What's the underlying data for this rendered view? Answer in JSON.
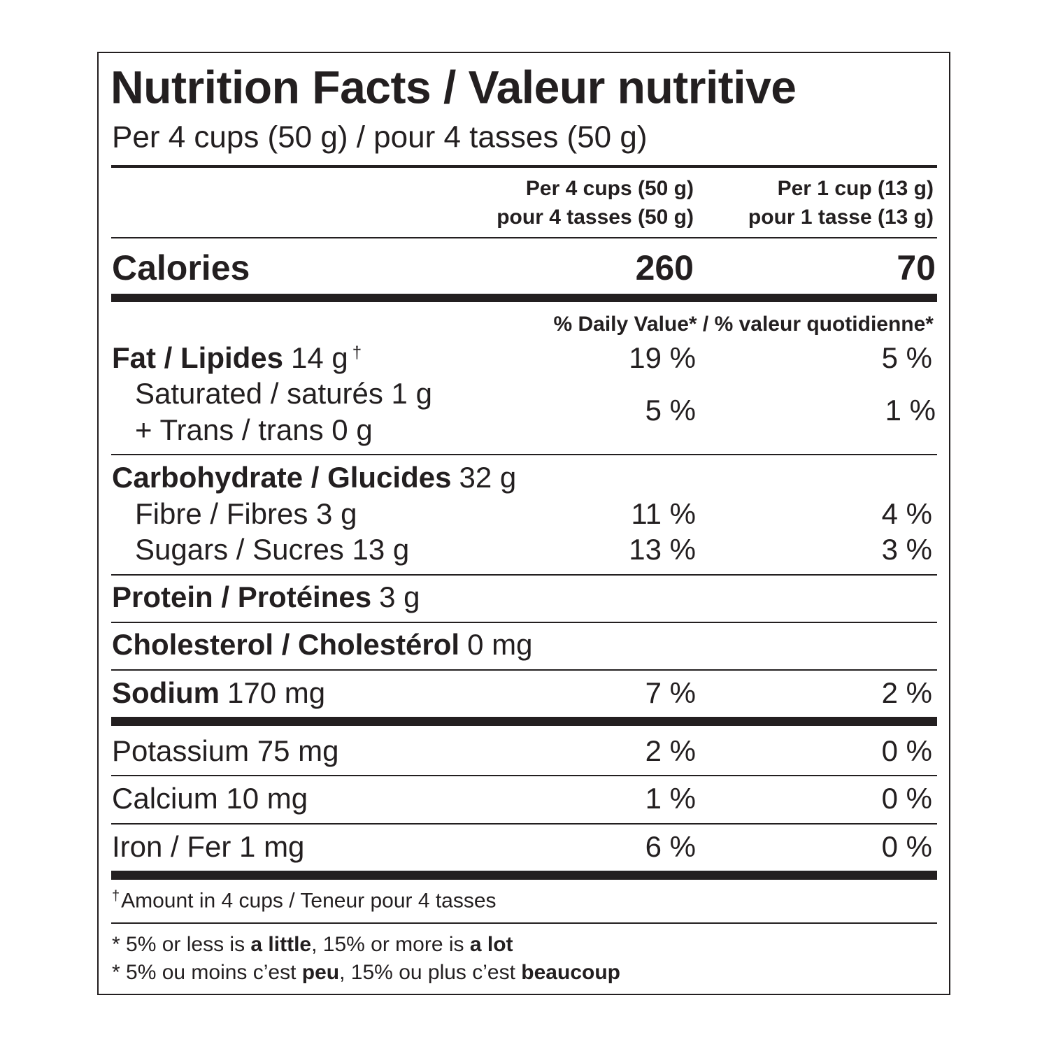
{
  "title": "Nutrition Facts / Valeur nutritive",
  "serving": "Per 4 cups (50 g) / pour 4 tasses (50 g)",
  "columns": [
    [
      "Per 4 cups (50 g)",
      "pour 4 tasses (50 g)"
    ],
    [
      "Per 1 cup (13 g)",
      "pour 1 tasse (13 g)"
    ]
  ],
  "calories": {
    "label": "Calories",
    "values": [
      260,
      70
    ]
  },
  "dv_header": "% Daily Value* / % valeur quotidienne*",
  "nutrients": [
    {
      "name": "Fat / Lipides",
      "amount": "14 g",
      "mark": "†",
      "dv": [
        "19 %",
        "5 %"
      ]
    },
    {
      "lines": [
        "Saturated / saturés 1 g",
        "+ Trans / trans 0 g"
      ],
      "dv": [
        "5 %",
        "1 %"
      ]
    },
    {
      "name": "Carbohydrate / Glucides",
      "amount": "32 g"
    },
    {
      "text": "Fibre / Fibres 3 g",
      "dv": [
        "11 %",
        "4 %"
      ]
    },
    {
      "text": "Sugars / Sucres 13 g",
      "dv": [
        "13 %",
        "3 %"
      ]
    },
    {
      "name": "Protein / Protéines",
      "amount": "3 g"
    },
    {
      "name": "Cholesterol / Cholestérol",
      "amount": "0 mg"
    },
    {
      "name": "Sodium",
      "amount": "170 mg",
      "dv": [
        "7 %",
        "2 %"
      ]
    },
    {
      "text": "Potassium 75 mg",
      "dv": [
        "2 %",
        "0 %"
      ]
    },
    {
      "text": "Calcium 10 mg",
      "dv": [
        "1 %",
        "0 %"
      ]
    },
    {
      "text": "Iron / Fer 1 mg",
      "dv": [
        "6 %",
        "0 %"
      ]
    }
  ],
  "footnote": {
    "mark": "†",
    "text": "Amount in 4 cups / Teneur pour 4 tasses"
  },
  "guide": [
    [
      "* 5% or less is ",
      "a little",
      ", 15% or more is ",
      "a lot"
    ],
    [
      "* 5% ou moins c’est ",
      "peu",
      ", 15% ou plus c’est ",
      "beaucoup"
    ]
  ]
}
